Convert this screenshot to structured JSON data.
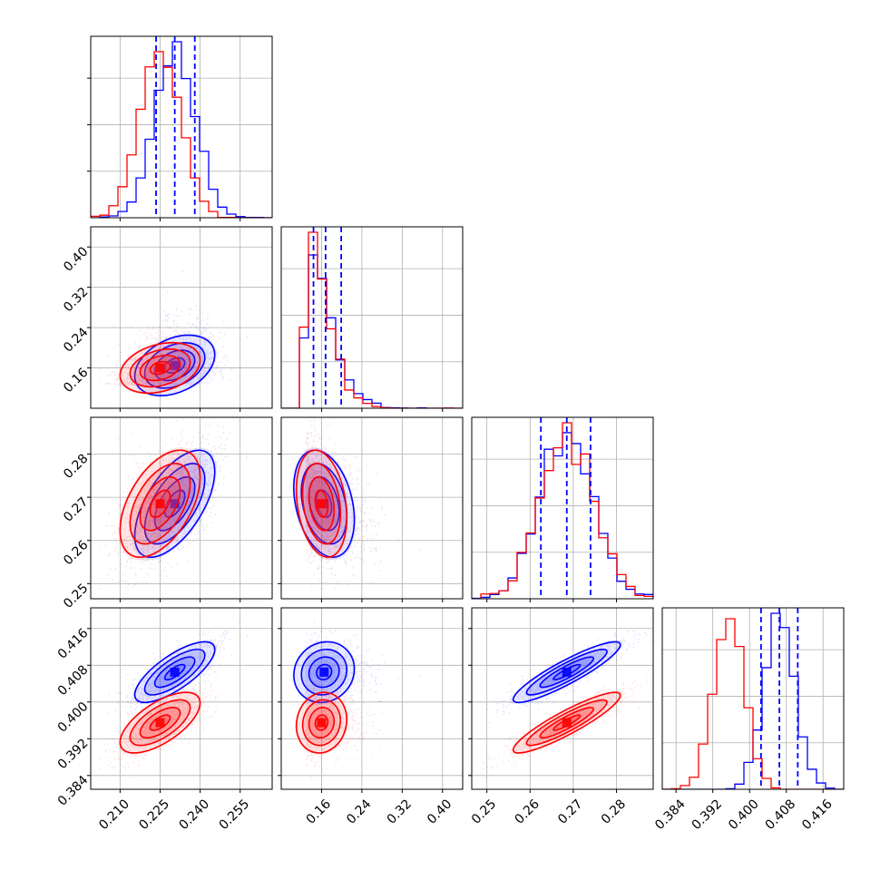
{
  "chart_data": {
    "type": "corner",
    "title": "",
    "grid": true,
    "dimensions": 4,
    "series": [
      {
        "name": "",
        "color": "#0000ff",
        "mean": [
          0.2305,
          0.165,
          0.2685,
          0.4065
        ],
        "std": [
          0.0075,
          0.03,
          0.0062,
          0.0033
        ],
        "corr": [
          [
            1,
            0.35,
            0.6,
            0.75
          ],
          [
            0.35,
            1,
            -0.3,
            0.1
          ],
          [
            0.6,
            -0.3,
            1,
            0.9
          ],
          [
            0.75,
            0.1,
            0.9,
            1
          ]
        ]
      },
      {
        "name": "",
        "color": "#ff0000",
        "mean": [
          0.225,
          0.16,
          0.2685,
          0.3955
        ],
        "std": [
          0.0075,
          0.025,
          0.0062,
          0.0033
        ],
        "corr": [
          [
            1,
            0.3,
            0.5,
            0.65
          ],
          [
            0.3,
            1,
            -0.25,
            0.1
          ],
          [
            0.5,
            -0.25,
            1,
            0.9
          ],
          [
            0.65,
            0.1,
            0.9,
            1
          ]
        ]
      }
    ],
    "quantiles": [
      [
        0.2235,
        0.2305,
        0.238
      ],
      [
        0.144,
        0.168,
        0.199
      ],
      [
        0.2625,
        0.2685,
        0.274
      ],
      [
        0.4025,
        0.4065,
        0.4105
      ]
    ],
    "ranges": [
      [
        0.199,
        0.267
      ],
      [
        0.08,
        0.44
      ],
      [
        0.2465,
        0.2885
      ],
      [
        0.381,
        0.4205
      ]
    ],
    "x_tick_values": [
      [
        0.21,
        0.225,
        0.24,
        0.255
      ],
      [
        0.16,
        0.24,
        0.32,
        0.4
      ],
      [
        0.25,
        0.26,
        0.27,
        0.28
      ],
      [
        0.384,
        0.392,
        0.4,
        0.408,
        0.416
      ]
    ],
    "x_tick_labels": [
      [
        "0.210",
        "0.225",
        "0.240",
        "0.255"
      ],
      [
        "0.16",
        "0.24",
        "0.32",
        "0.40"
      ],
      [
        "0.25",
        "0.26",
        "0.27",
        "0.28"
      ],
      [
        "0.384",
        "0.392",
        "0.400",
        "0.408",
        "0.416"
      ]
    ],
    "y_tick_values": [
      [],
      [
        0.16,
        0.24,
        0.32,
        0.4
      ],
      [
        0.25,
        0.26,
        0.27,
        0.28
      ],
      [
        0.384,
        0.392,
        0.4,
        0.408,
        0.416
      ]
    ],
    "y_tick_labels": [
      [],
      [
        "0.16",
        "0.24",
        "0.32",
        "0.40"
      ],
      [
        "0.25",
        "0.26",
        "0.27",
        "0.28"
      ],
      [
        "0.384",
        "0.392",
        "0.400",
        "0.408",
        "0.416"
      ]
    ],
    "xlabel": "",
    "ylabel": ""
  }
}
